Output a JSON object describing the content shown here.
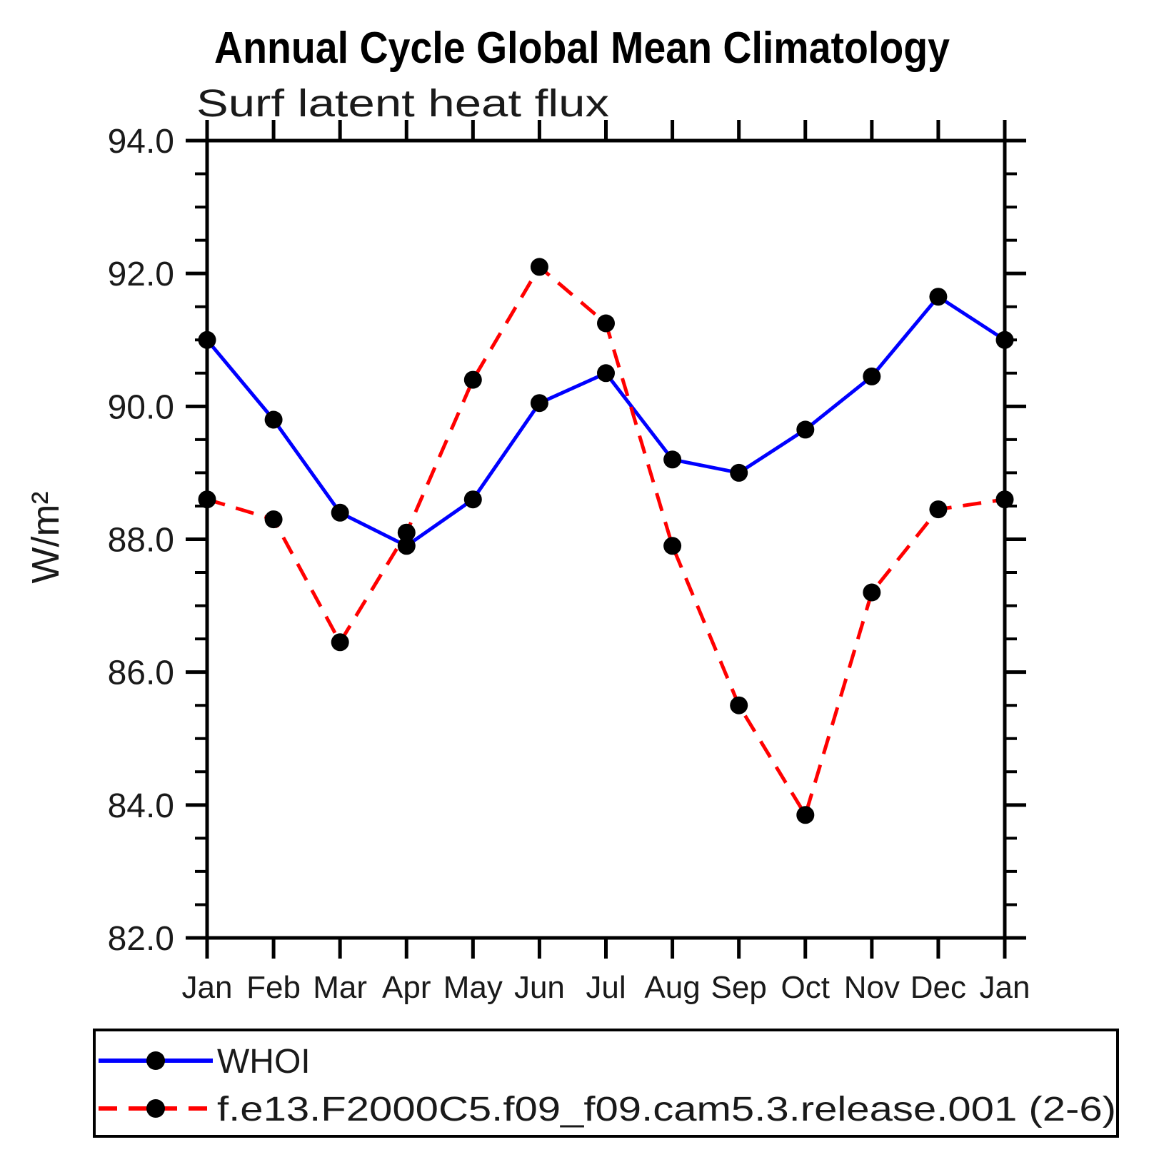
{
  "page": {
    "background_color": "#FFFFFF",
    "axis_color": "#000000"
  },
  "chart_data": {
    "type": "line",
    "title": "Annual Cycle Global Mean Climatology",
    "subtitle": "Surf latent heat flux",
    "ylabel": "W/m²",
    "xlabel": "",
    "categories": [
      "Jan",
      "Feb",
      "Mar",
      "Apr",
      "May",
      "Jun",
      "Jul",
      "Aug",
      "Sep",
      "Oct",
      "Nov",
      "Dec",
      "Jan"
    ],
    "ylim": [
      82.0,
      94.0
    ],
    "y_major_step": 2.0,
    "y_minor_step": 0.5,
    "y_tick_labels": [
      "94.0",
      "92.0",
      "90.0",
      "88.0",
      "86.0",
      "84.0",
      "82.0"
    ],
    "grid": false,
    "legend_position": "bottom-left-box",
    "series": [
      {
        "name": "WHOI",
        "color": "#0000FF",
        "line_style": "solid",
        "marker": "circle",
        "marker_color": "#000000",
        "values": [
          91.0,
          89.8,
          88.4,
          87.9,
          88.6,
          90.05,
          90.5,
          89.2,
          89.0,
          89.65,
          90.45,
          91.65,
          91.0
        ]
      },
      {
        "name": "f.e13.F2000C5.f09_f09.cam5.3.release.001 (2-6)",
        "color": "#FF0000",
        "line_style": "dashed",
        "marker": "circle",
        "marker_color": "#000000",
        "values": [
          88.6,
          88.3,
          86.45,
          88.1,
          90.4,
          92.1,
          91.25,
          87.9,
          85.5,
          83.85,
          87.2,
          88.45,
          88.6
        ]
      }
    ]
  }
}
